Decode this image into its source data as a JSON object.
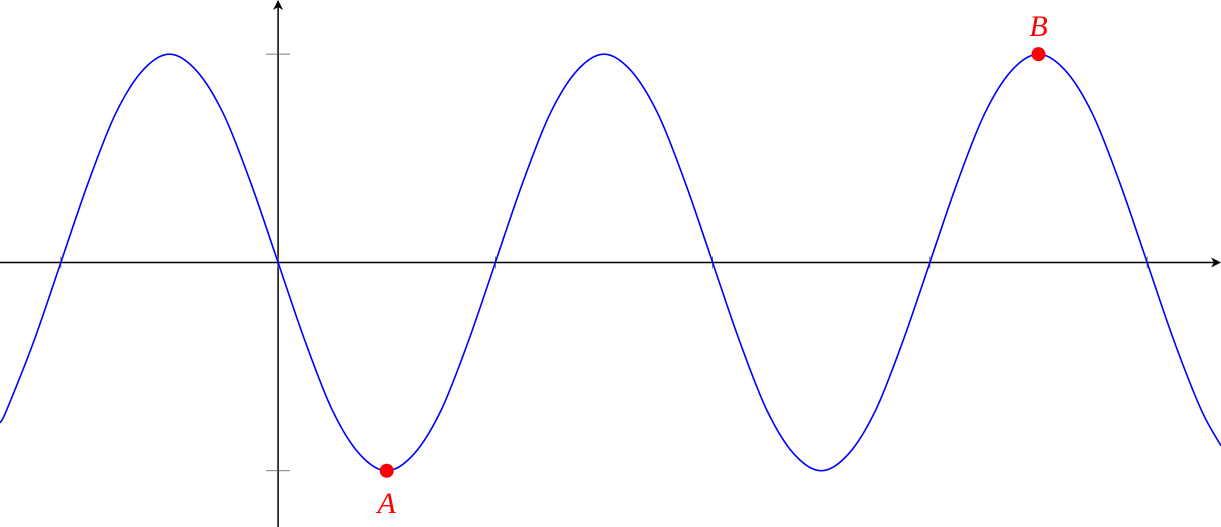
{
  "chart_data": {
    "type": "line",
    "xlim": [
      -1.28,
      4.34
    ],
    "ylim": [
      -1.27,
      1.26
    ],
    "xticks": [
      -1,
      0,
      1,
      2,
      3,
      4
    ],
    "yticks": [
      -1,
      1
    ],
    "series": [
      {
        "color": "#0000ff",
        "x": [
          -1.28,
          -1.25,
          -1.125,
          -1,
          -0.875,
          -0.75,
          -0.625,
          -0.5,
          -0.375,
          -0.25,
          -0.125,
          0,
          0.125,
          0.25,
          0.375,
          0.5,
          0.625,
          0.75,
          0.875,
          1,
          1.125,
          1.25,
          1.375,
          1.5,
          1.625,
          1.75,
          1.875,
          2,
          2.125,
          2.25,
          2.375,
          2.5,
          2.625,
          2.75,
          2.875,
          3,
          3.125,
          3.25,
          3.375,
          3.5,
          3.625,
          3.75,
          3.875,
          4,
          4.125,
          4.25,
          4.34
        ],
        "values": [
          -0.77,
          -0.71,
          -0.38,
          0,
          0.38,
          0.71,
          0.92,
          1,
          0.92,
          0.71,
          0.38,
          0,
          -0.38,
          -0.71,
          -0.92,
          -1,
          -0.92,
          -0.71,
          -0.38,
          0,
          0.38,
          0.71,
          0.92,
          1,
          0.92,
          0.71,
          0.38,
          0,
          -0.38,
          -0.71,
          -0.92,
          -1,
          -0.92,
          -0.71,
          -0.38,
          0,
          0.38,
          0.71,
          0.92,
          1,
          0.92,
          0.71,
          0.38,
          0,
          -0.38,
          -0.71,
          -0.88
        ]
      }
    ],
    "points": {
      "color": "#ff0000",
      "x": [
        0.5,
        3.5
      ],
      "values": [
        -1,
        1
      ],
      "labels": [
        "A",
        "B"
      ]
    }
  }
}
